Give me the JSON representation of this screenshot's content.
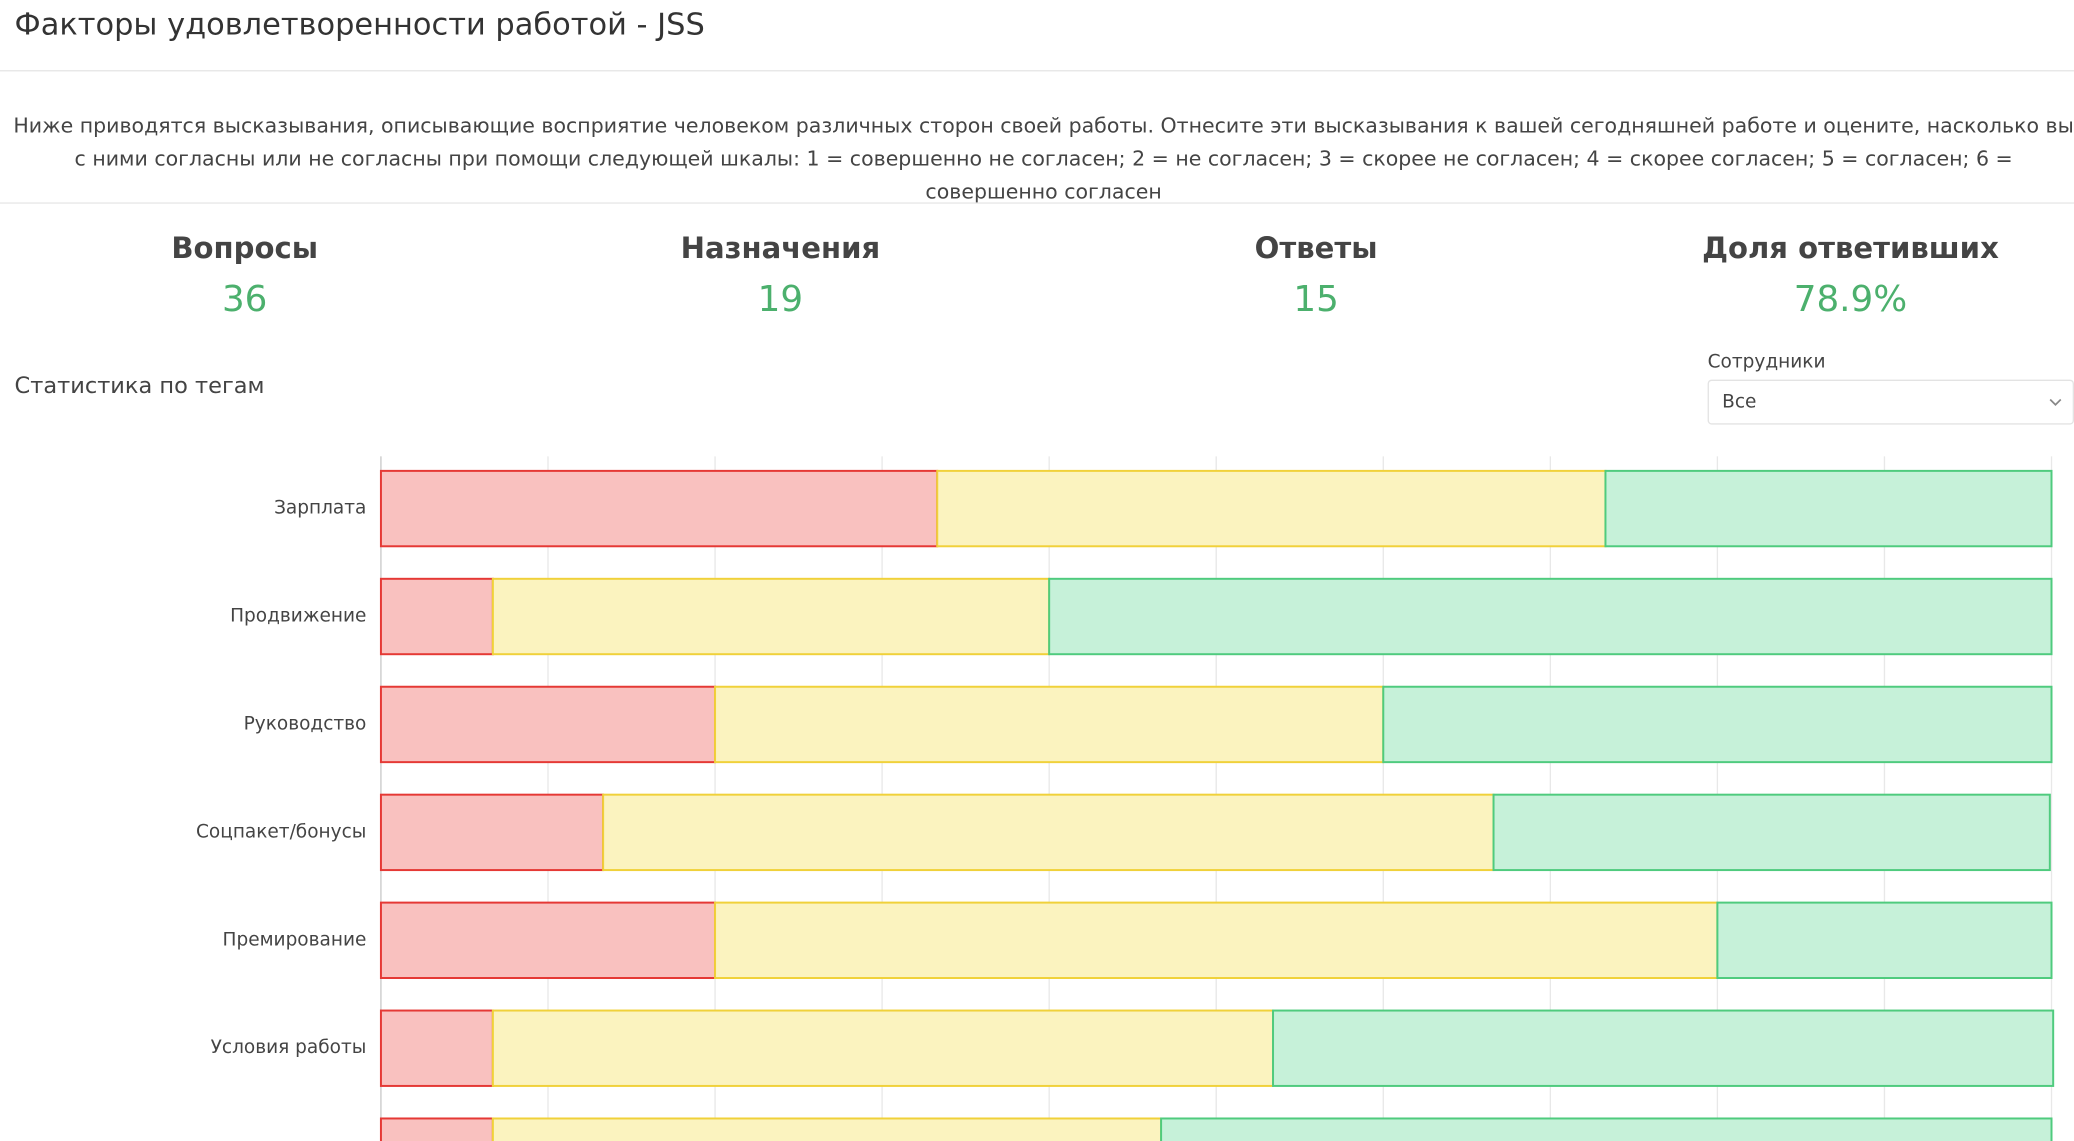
{
  "header": {
    "title": "Факторы удовлетворенности работой - JSS"
  },
  "intro": {
    "text": "Ниже приводятся высказывания, описывающие восприятие человеком различных сторон своей работы. Отнесите эти высказывания к вашей сегодняшней работе и оцените, насколько вы с ними согласны или не согласны при помощи следующей шкалы: 1 = совершенно не согласен; 2 = не согласен; 3 = скорее не согласен; 4 = скорее согласен; 5 = согласен; 6 = совершенно согласен"
  },
  "stats": [
    {
      "label": "Вопросы",
      "value": 36
    },
    {
      "label": "Назначения",
      "value": 19
    },
    {
      "label": "Ответы",
      "value": 15
    },
    {
      "label": "Доля ответивших",
      "value": "78.9%"
    }
  ],
  "section_title": "Статистика по тегам",
  "filter": {
    "label": "Сотрудники",
    "value": "Все"
  },
  "chart_data": {
    "type": "stacked-bar-horizontal",
    "categories": [
      "Зарплата",
      "Продвижение",
      "Руководство",
      "Соцпакет/бонусы",
      "Премирование",
      "Условия работы",
      null
    ],
    "series": [
      {
        "color": "#f9c1bf",
        "values": [
          33.3,
          6.7,
          20,
          13.3,
          20,
          6.7,
          6.7
        ]
      },
      {
        "color": "#fbf3bf",
        "values": [
          40,
          33.3,
          40,
          53.3,
          60,
          46.7,
          40
        ]
      },
      {
        "color": "#c6f1d9",
        "values": [
          26.7,
          60,
          40,
          33.3,
          20,
          46.7,
          53.3
        ]
      }
    ],
    "xlim": [
      0,
      100
    ],
    "xticks": [
      0,
      10,
      20,
      30,
      40,
      50,
      60,
      70,
      80,
      90,
      100
    ],
    "grid": true
  }
}
